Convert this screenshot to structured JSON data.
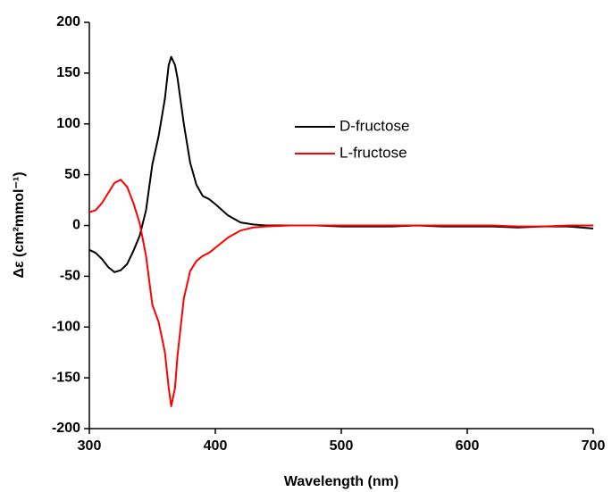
{
  "chart_data": {
    "type": "line",
    "x_label": "Wavelength (nm)",
    "y_label": "Δε (cm²mmol⁻¹)",
    "x": [
      300,
      305,
      310,
      315,
      320,
      325,
      330,
      335,
      340,
      345,
      350,
      355,
      360,
      363,
      365,
      368,
      370,
      375,
      380,
      385,
      390,
      395,
      400,
      410,
      420,
      430,
      440,
      460,
      480,
      500,
      520,
      540,
      560,
      580,
      600,
      620,
      640,
      660,
      680,
      700
    ],
    "series": [
      {
        "name": "D-fructose",
        "color": "#000000",
        "values": [
          -24,
          -27,
          -33,
          -41,
          -46,
          -44,
          -38,
          -25,
          -10,
          15,
          60,
          88,
          125,
          158,
          166,
          158,
          145,
          100,
          62,
          40,
          29,
          26,
          21,
          10,
          3,
          1,
          0,
          0,
          0,
          -1,
          -1,
          -1,
          0,
          -1,
          -1,
          -1,
          -2,
          -1,
          -1,
          -3
        ]
      },
      {
        "name": "L-fructose",
        "color": "#ff0000",
        "values": [
          13,
          15,
          22,
          32,
          42,
          45,
          38,
          22,
          2,
          -30,
          -78,
          -95,
          -125,
          -160,
          -178,
          -160,
          -128,
          -72,
          -45,
          -35,
          -30,
          -27,
          -22,
          -12,
          -5,
          -2,
          -1,
          0,
          0,
          0,
          0,
          0,
          0,
          0,
          0,
          0,
          -1,
          -1,
          0,
          0
        ]
      }
    ],
    "xlim": [
      300,
      700
    ],
    "xticks": [
      300,
      400,
      500,
      600,
      700
    ],
    "ylim": [
      -200,
      200
    ],
    "yticks": [
      -200,
      -150,
      -100,
      -50,
      0,
      50,
      100,
      150,
      200
    ]
  }
}
